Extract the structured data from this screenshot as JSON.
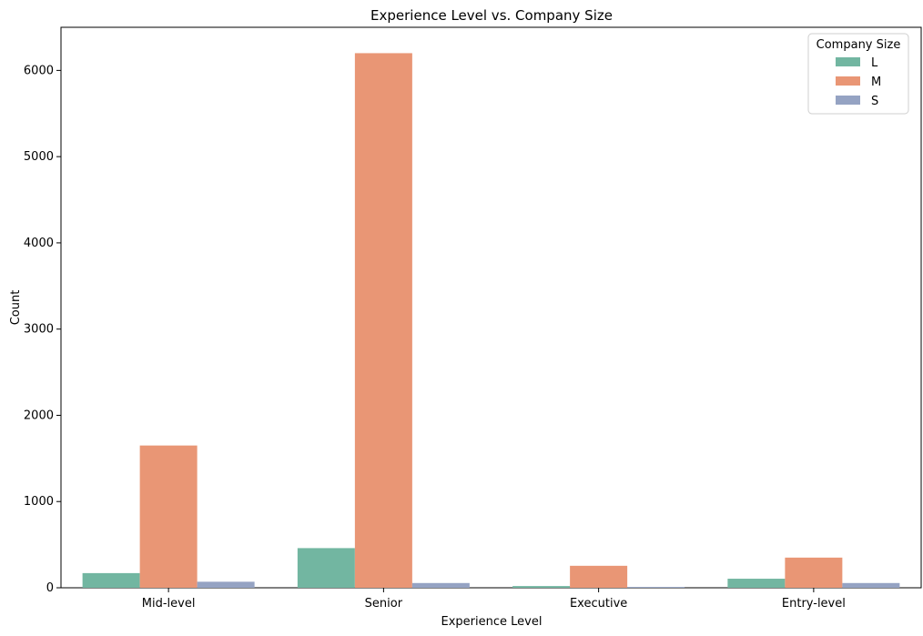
{
  "chart_data": {
    "type": "bar",
    "title": "Experience Level vs. Company Size",
    "xlabel": "Experience Level",
    "ylabel": "Count",
    "categories": [
      "Mid-level",
      "Senior",
      "Executive",
      "Entry-level"
    ],
    "ylim": [
      0,
      6500
    ],
    "yticks": [
      0,
      1000,
      2000,
      3000,
      4000,
      5000,
      6000
    ],
    "grid": false,
    "legend": {
      "title": "Company Size",
      "placement": "top-right"
    },
    "series": [
      {
        "name": "L",
        "color": "#72b6a1",
        "values": [
          170,
          460,
          20,
          105
        ]
      },
      {
        "name": "M",
        "color": "#e99675",
        "values": [
          1650,
          6200,
          255,
          350
        ]
      },
      {
        "name": "S",
        "color": "#95a3c3",
        "values": [
          70,
          55,
          10,
          55
        ]
      }
    ]
  }
}
